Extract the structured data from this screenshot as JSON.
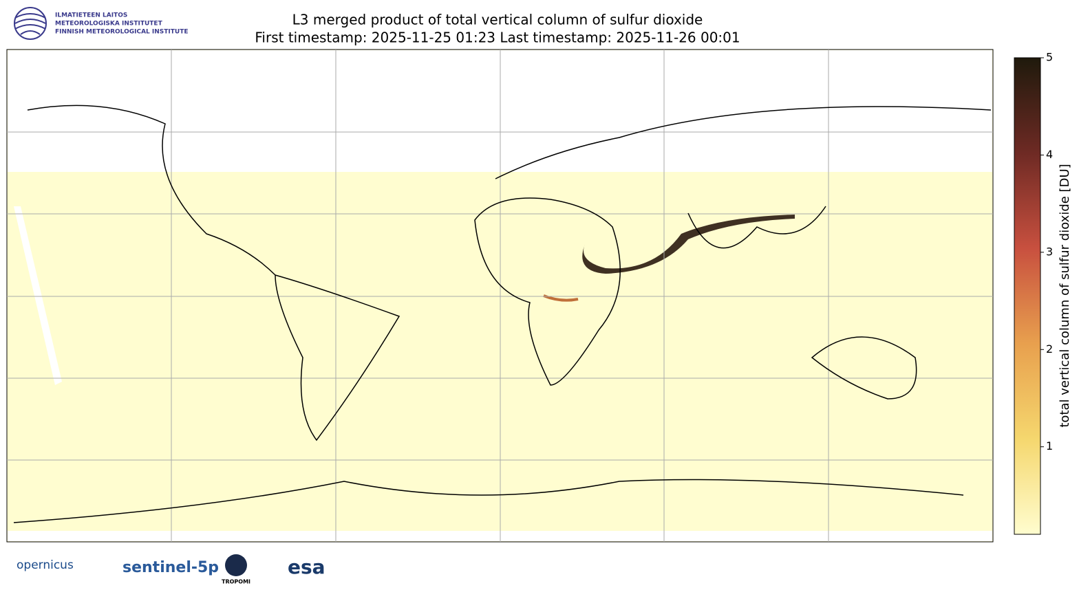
{
  "header": {
    "institute_lines": [
      "ILMATIETEEN LAITOS",
      "METEOROLOGISKA INSTITUTET",
      "FINNISH METEOROLOGICAL INSTITUTE"
    ],
    "title_lines": [
      "L3 merged product of total vertical column of sulfur dioxide",
      "First timestamp: 2025-11-25 01:23   Last timestamp: 2025-11-26 00:01"
    ]
  },
  "colorbar": {
    "label": "total vertical column of sulfur dioxide [DU]",
    "lim": [
      0.1,
      5
    ],
    "ticks": [
      1,
      2,
      3,
      4,
      5
    ]
  },
  "footer": {
    "logos": [
      "opernicus",
      "sentinel-5p",
      "TROPOMI",
      "esa"
    ]
  }
}
